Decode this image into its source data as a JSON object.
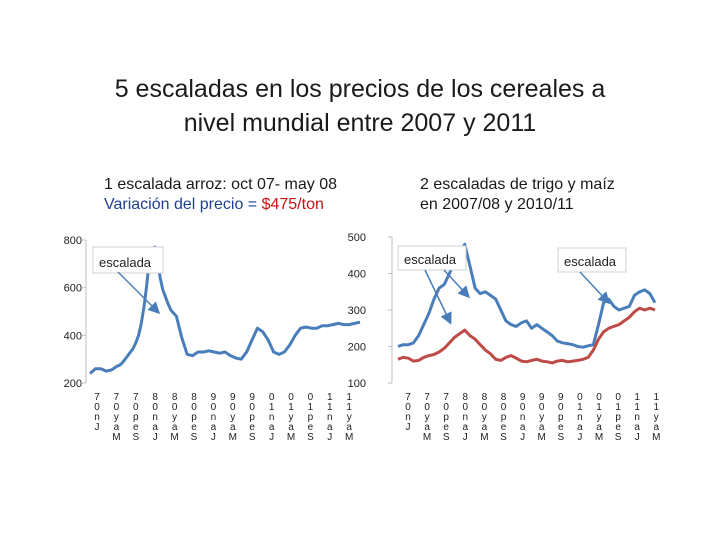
{
  "slide": {
    "title_line1": "5 escaladas en los precios de los cereales a",
    "title_line2": "nivel mundial entre 2007 y 2011",
    "left_caption_line1": "1 escalada arroz: oct 07- may 08",
    "left_caption_prefix": "Variación del precio = ",
    "left_caption_value": "$475/ton",
    "right_caption_line1": "2 escaladas de trigo y maíz",
    "right_caption_line2": "en 2007/08 y 2010/11"
  },
  "colors": {
    "rice": "#4a7ebb",
    "wheat": "#4a7ebb",
    "maize": "#be4b48",
    "arrow": "#4a7ebb",
    "axis": "#bfbfbf"
  },
  "chart_data": [
    {
      "type": "line",
      "name": "rice",
      "ylim": [
        200,
        800
      ],
      "yticks": [
        200,
        400,
        600,
        800
      ],
      "x_tick_labels": [
        "7 0 n J",
        "7 0 y a M",
        "7 0 p e S",
        "8 0 n a J",
        "8 0 y a M",
        "8 0 p e S",
        "9 0 n a J",
        "9 0 y a M",
        "9 0 p e S",
        "0 1 n a J",
        "0 1 y a M",
        "0 1 p e S",
        "1 1 n a J",
        "1 1 y a M"
      ],
      "series": [
        {
          "name": "Arroz",
          "x_month_index": [
            0,
            2,
            4,
            6,
            8,
            10,
            11,
            12,
            13,
            14,
            15,
            16,
            17,
            18,
            19,
            20,
            21,
            22,
            23,
            24,
            25,
            26,
            27,
            28,
            29,
            30,
            32,
            34,
            36,
            38,
            40,
            42,
            44,
            46,
            48,
            50,
            52,
            54,
            56,
            58,
            60,
            62,
            64,
            66,
            68,
            70,
            72,
            74,
            76,
            78,
            80,
            82,
            84,
            86,
            88,
            90,
            92,
            94,
            96,
            98,
            100
          ],
          "values": [
            240,
            260,
            260,
            250,
            255,
            270,
            275,
            285,
            300,
            315,
            330,
            345,
            370,
            400,
            450,
            520,
            610,
            720,
            760,
            770,
            720,
            640,
            590,
            560,
            530,
            505,
            480,
            390,
            320,
            315,
            330,
            330,
            335,
            330,
            325,
            330,
            315,
            305,
            300,
            330,
            380,
            430,
            415,
            380,
            330,
            320,
            330,
            360,
            400,
            430,
            435,
            430,
            430,
            440,
            440,
            445,
            450,
            445,
            445,
            450,
            455
          ]
        }
      ],
      "annotations": [
        "escalada"
      ]
    },
    {
      "type": "line",
      "name": "wheat_maize",
      "ylim": [
        100,
        500
      ],
      "yticks": [
        100,
        200,
        300,
        400,
        500
      ],
      "x_tick_labels": [
        "7 0 n J",
        "7 0 y a M",
        "7 0 p e S",
        "8 0 n a J",
        "8 0 y a M",
        "8 0 p e S",
        "9 0 n a J",
        "9 0 y a M",
        "9 0 p e S",
        "0 1 n a J",
        "0 1 y a M",
        "0 1 p e S",
        "1 1 n a J",
        "1 1 y a M"
      ],
      "series": [
        {
          "name": "Trigo",
          "x_month_index": [
            0,
            2,
            4,
            6,
            8,
            10,
            12,
            14,
            16,
            18,
            20,
            22,
            24,
            26,
            28,
            30,
            32,
            34,
            36,
            38,
            40,
            42,
            44,
            46,
            48,
            50,
            52,
            54,
            56,
            58,
            60,
            62,
            64,
            66,
            68,
            70,
            72,
            74,
            76,
            78,
            80,
            82,
            84,
            86,
            88,
            90,
            92,
            94,
            96,
            98,
            100
          ],
          "values": [
            200,
            205,
            205,
            210,
            230,
            260,
            290,
            330,
            360,
            370,
            400,
            430,
            460,
            480,
            420,
            360,
            345,
            350,
            340,
            330,
            300,
            270,
            260,
            255,
            265,
            270,
            250,
            260,
            250,
            240,
            230,
            215,
            210,
            208,
            205,
            200,
            198,
            202,
            205,
            260,
            320,
            330,
            310,
            300,
            305,
            310,
            340,
            350,
            355,
            345,
            320
          ]
        },
        {
          "name": "Maíz",
          "x_month_index": [
            0,
            2,
            4,
            6,
            8,
            10,
            12,
            14,
            16,
            18,
            20,
            22,
            24,
            26,
            28,
            30,
            32,
            34,
            36,
            38,
            40,
            42,
            44,
            46,
            48,
            50,
            52,
            54,
            56,
            58,
            60,
            62,
            64,
            66,
            68,
            70,
            72,
            74,
            76,
            78,
            80,
            82,
            84,
            86,
            88,
            90,
            92,
            94,
            96,
            98,
            100
          ],
          "values": [
            165,
            170,
            168,
            160,
            162,
            170,
            175,
            178,
            185,
            195,
            210,
            225,
            235,
            245,
            230,
            220,
            205,
            190,
            180,
            165,
            162,
            170,
            175,
            168,
            160,
            158,
            162,
            165,
            160,
            158,
            155,
            160,
            162,
            158,
            160,
            162,
            165,
            170,
            190,
            220,
            240,
            250,
            255,
            260,
            270,
            280,
            295,
            305,
            300,
            305,
            300
          ]
        }
      ],
      "annotations": [
        "escalada",
        "escalada"
      ]
    }
  ]
}
